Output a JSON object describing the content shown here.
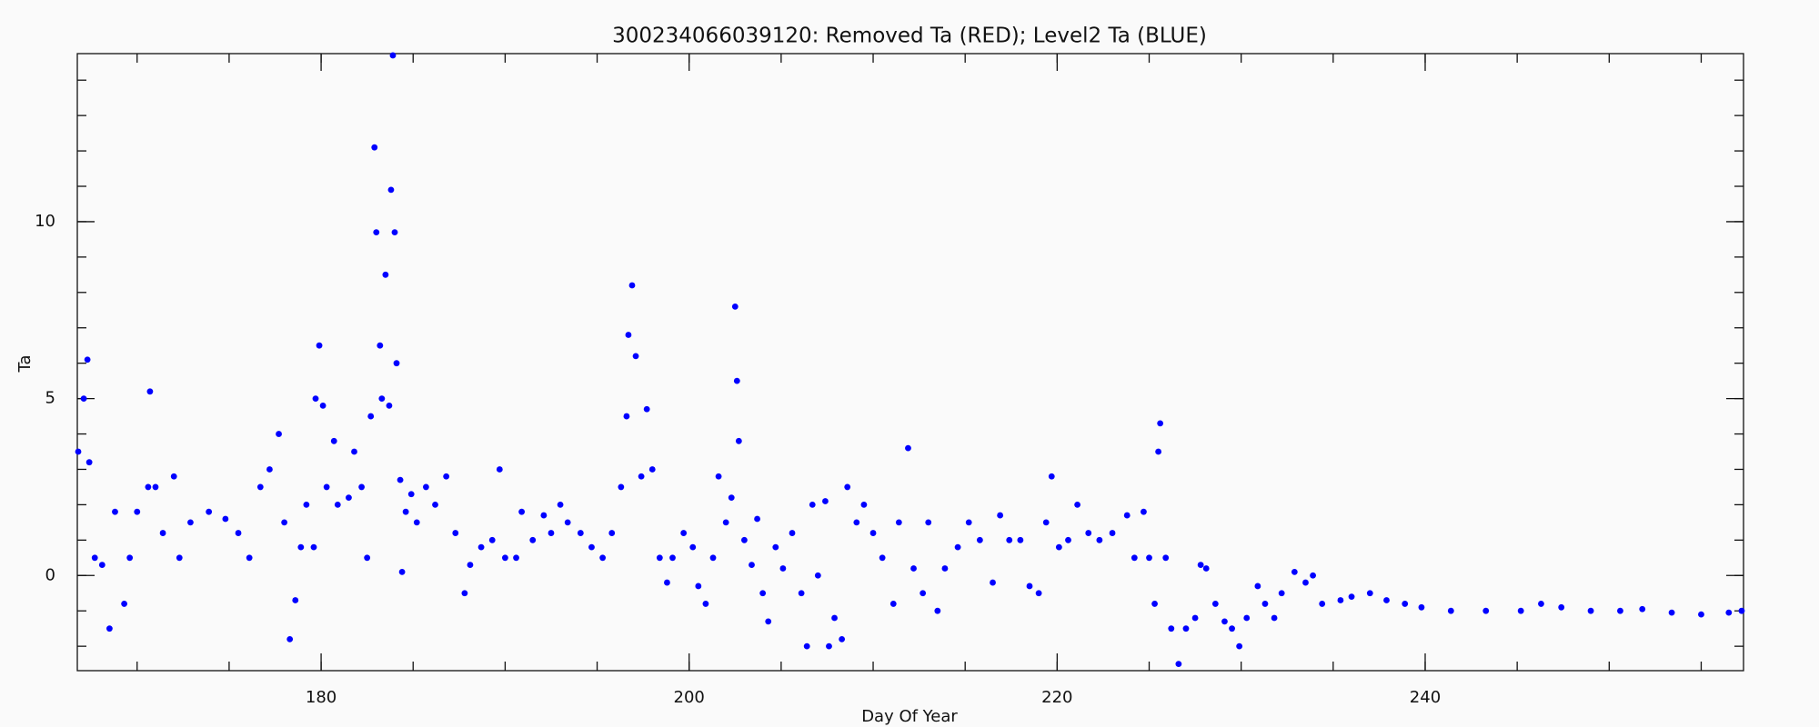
{
  "chart_data": {
    "type": "scatter",
    "title": "300234066039120: Removed Ta (RED); Level2 Ta (BLUE)",
    "xlabel": "Day Of Year",
    "ylabel": "Ta",
    "color": "#0000ff",
    "xlim": [
      166.75,
      257.3
    ],
    "ylim": [
      -2.69,
      14.75
    ],
    "xticks": [
      180,
      200,
      220,
      240
    ],
    "yticks": [
      0,
      5,
      10
    ],
    "xminor": 4,
    "yminor": 5,
    "grid": false,
    "x": [
      166.8,
      167.1,
      167.3,
      167.4,
      167.7,
      168.1,
      168.5,
      168.8,
      169.3,
      169.6,
      170.0,
      170.6,
      170.7,
      171.0,
      171.4,
      172.0,
      172.3,
      172.9,
      173.9,
      174.8,
      175.5,
      176.1,
      176.7,
      177.2,
      177.7,
      178.0,
      178.3,
      178.6,
      178.9,
      179.2,
      179.6,
      179.7,
      179.9,
      180.1,
      180.3,
      180.7,
      180.9,
      181.5,
      181.8,
      182.2,
      182.5,
      182.7,
      182.9,
      183.0,
      183.2,
      183.3,
      183.5,
      183.7,
      183.8,
      183.9,
      184.0,
      184.1,
      184.3,
      184.4,
      184.6,
      184.9,
      185.2,
      185.7,
      186.2,
      186.8,
      187.3,
      187.8,
      188.1,
      188.7,
      189.3,
      189.7,
      190.0,
      190.6,
      190.9,
      191.5,
      192.1,
      192.5,
      193.0,
      193.4,
      194.1,
      194.7,
      195.3,
      195.8,
      196.3,
      196.6,
      196.7,
      196.9,
      197.1,
      197.4,
      197.7,
      198.0,
      198.4,
      198.8,
      199.1,
      199.7,
      200.2,
      200.5,
      200.9,
      201.3,
      201.6,
      202.0,
      202.3,
      202.5,
      202.6,
      202.7,
      203.0,
      203.4,
      203.7,
      204.0,
      204.3,
      204.7,
      205.1,
      205.6,
      206.1,
      206.4,
      206.7,
      207.0,
      207.4,
      207.6,
      207.9,
      208.3,
      208.6,
      209.1,
      209.5,
      210.0,
      210.5,
      211.1,
      211.4,
      211.9,
      212.2,
      212.7,
      213.0,
      213.5,
      213.9,
      214.6,
      215.2,
      215.8,
      216.5,
      216.9,
      217.4,
      218.0,
      218.5,
      219.0,
      219.4,
      219.7,
      220.1,
      220.6,
      221.1,
      221.7,
      222.3,
      223.0,
      223.8,
      224.2,
      224.7,
      225.0,
      225.3,
      225.5,
      225.6,
      225.9,
      226.2,
      226.6,
      227.0,
      227.5,
      227.8,
      228.1,
      228.6,
      229.1,
      229.5,
      229.9,
      230.3,
      230.9,
      231.3,
      231.8,
      232.2,
      232.9,
      233.5,
      233.9,
      234.4,
      235.4,
      236.0,
      237.0,
      237.9,
      238.9,
      239.8,
      241.4,
      243.3,
      245.2,
      246.3,
      247.4,
      249.0,
      250.6,
      251.8,
      253.4,
      255.0,
      256.5,
      257.2
    ],
    "y": [
      3.5,
      5.0,
      6.1,
      3.2,
      0.5,
      0.3,
      -1.5,
      1.8,
      -0.8,
      0.5,
      1.8,
      2.5,
      5.2,
      2.5,
      1.2,
      2.8,
      0.5,
      1.5,
      1.8,
      1.6,
      1.2,
      0.5,
      2.5,
      3.0,
      4.0,
      1.5,
      -1.8,
      -0.7,
      0.8,
      2.0,
      0.8,
      5.0,
      6.5,
      4.8,
      2.5,
      3.8,
      2.0,
      2.2,
      3.5,
      2.5,
      0.5,
      4.5,
      12.1,
      9.7,
      6.5,
      5.0,
      8.5,
      4.8,
      10.9,
      14.7,
      9.7,
      6.0,
      2.7,
      0.1,
      1.8,
      2.3,
      1.5,
      2.5,
      2.0,
      2.8,
      1.2,
      -0.5,
      0.3,
      0.8,
      1.0,
      3.0,
      0.5,
      0.5,
      1.8,
      1.0,
      1.7,
      1.2,
      2.0,
      1.5,
      1.2,
      0.8,
      0.5,
      1.2,
      2.5,
      4.5,
      6.8,
      8.2,
      6.2,
      2.8,
      4.7,
      3.0,
      0.5,
      -0.2,
      0.5,
      1.2,
      0.8,
      -0.3,
      -0.8,
      0.5,
      2.8,
      1.5,
      2.2,
      7.6,
      5.5,
      3.8,
      1.0,
      0.3,
      1.6,
      -0.5,
      -1.3,
      0.8,
      0.2,
      1.2,
      -0.5,
      -2.0,
      2.0,
      0.0,
      2.1,
      -2.0,
      -1.2,
      -1.8,
      2.5,
      1.5,
      2.0,
      1.2,
      0.5,
      -0.8,
      1.5,
      3.6,
      0.2,
      -0.5,
      1.5,
      -1.0,
      0.2,
      0.8,
      1.5,
      1.0,
      -0.2,
      1.7,
      1.0,
      1.0,
      -0.3,
      -0.5,
      1.5,
      2.8,
      0.8,
      1.0,
      2.0,
      1.2,
      1.0,
      1.2,
      1.7,
      0.5,
      1.8,
      0.5,
      -0.8,
      3.5,
      4.3,
      0.5,
      -1.5,
      -2.5,
      -1.5,
      -1.2,
      0.3,
      0.2,
      -0.8,
      -1.3,
      -1.5,
      -2.0,
      -1.2,
      -0.3,
      -0.8,
      -1.2,
      -0.5,
      0.1,
      -0.2,
      0.0,
      -0.8,
      -0.7,
      -0.6,
      -0.5,
      -0.7,
      -0.8,
      -0.9,
      -1.0,
      -1.0,
      -1.0,
      -0.8,
      -0.9,
      -1.0,
      -1.0,
      -0.95,
      -1.05,
      -1.1,
      -1.05,
      -1.0
    ]
  }
}
